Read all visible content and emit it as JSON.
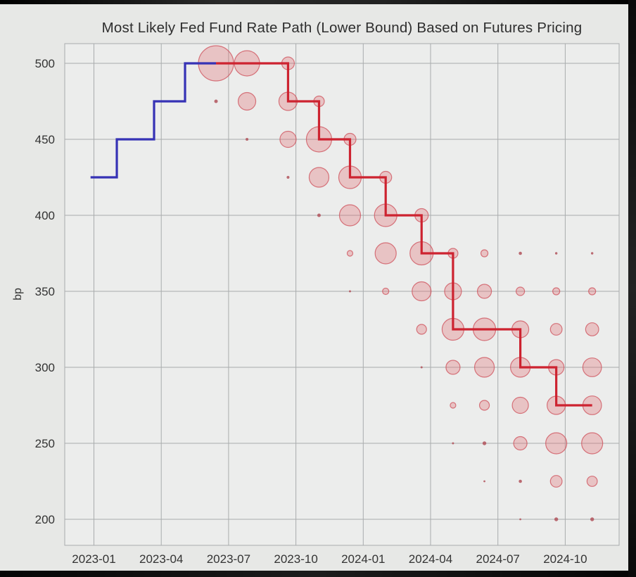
{
  "title": "Most Likely Fed Fund Rate Path (Lower Bound) Based on Futures Pricing",
  "chart_data": {
    "type": "scatter",
    "title": "Most Likely Fed Fund Rate Path (Lower Bound) Based on Futures Pricing",
    "xlabel": "",
    "ylabel": "bp",
    "x_tick_labels": [
      "2023-01",
      "2023-04",
      "2023-07",
      "2023-10",
      "2024-01",
      "2024-04",
      "2024-07",
      "2024-10"
    ],
    "x_tick_months": [
      0,
      3,
      6,
      9,
      12,
      15,
      18,
      21
    ],
    "y_ticks": [
      200,
      250,
      300,
      350,
      400,
      450,
      500
    ],
    "ylim": [
      183,
      513
    ],
    "xlim_months": [
      -1.3,
      23.4
    ],
    "grid": true,
    "legend": "none",
    "series": [
      {
        "name": "historical-rate-path",
        "type": "step-line",
        "color": "#3632b5",
        "points_t_bp": [
          [
            -0.15,
            425
          ],
          [
            1.02,
            450
          ],
          [
            2.68,
            475
          ],
          [
            4.06,
            500
          ]
        ],
        "end_t": 5.44
      },
      {
        "name": "futures-implied-most-likely-path",
        "type": "step-line",
        "color": "#cd2330",
        "points_t_bp": [
          [
            5.44,
            500
          ],
          [
            8.65,
            475
          ],
          [
            10.03,
            450
          ],
          [
            11.41,
            425
          ],
          [
            13.0,
            400
          ],
          [
            14.6,
            375
          ],
          [
            16.0,
            325
          ],
          [
            19.0,
            300
          ],
          [
            20.6,
            275
          ]
        ],
        "end_t": 22.2
      },
      {
        "name": "meeting-outcome-probabilities",
        "type": "bubble",
        "fill": "rgba(224,105,112,0.32)",
        "stroke": "rgba(206,77,88,0.75)",
        "dot_fill": "rgba(178,82,92,0.85)",
        "meetings": [
          {
            "date": "2023-06-14",
            "t": 5.44,
            "probs_bp_r": [
              [
                500,
                25
              ],
              [
                475,
                2.5
              ]
            ]
          },
          {
            "date": "2023-07-26",
            "t": 6.82,
            "probs_bp_r": [
              [
                500,
                18
              ],
              [
                475,
                12.5
              ],
              [
                450,
                2
              ]
            ]
          },
          {
            "date": "2023-09-20",
            "t": 8.65,
            "probs_bp_r": [
              [
                500,
                9
              ],
              [
                475,
                13
              ],
              [
                450,
                11.5
              ],
              [
                425,
                2
              ]
            ]
          },
          {
            "date": "2023-11-01",
            "t": 10.03,
            "probs_bp_r": [
              [
                475,
                7.5
              ],
              [
                450,
                18
              ],
              [
                425,
                14
              ],
              [
                400,
                2.5
              ]
            ]
          },
          {
            "date": "2023-12-13",
            "t": 11.41,
            "probs_bp_r": [
              [
                450,
                8.5
              ],
              [
                425,
                16
              ],
              [
                400,
                15
              ],
              [
                375,
                4
              ],
              [
                350,
                1.5
              ]
            ]
          },
          {
            "date": "2024-01-31",
            "t": 13.0,
            "probs_bp_r": [
              [
                425,
                8.5
              ],
              [
                400,
                16
              ],
              [
                375,
                15
              ],
              [
                350,
                4.5
              ]
            ]
          },
          {
            "date": "2024-03-20",
            "t": 14.6,
            "probs_bp_r": [
              [
                400,
                9.5
              ],
              [
                375,
                16.5
              ],
              [
                350,
                13.5
              ],
              [
                325,
                7
              ],
              [
                300,
                1.5
              ]
            ]
          },
          {
            "date": "2024-05-01",
            "t": 16.0,
            "probs_bp_r": [
              [
                375,
                7
              ],
              [
                350,
                12
              ],
              [
                325,
                15.5
              ],
              [
                300,
                10
              ],
              [
                275,
                4
              ],
              [
                250,
                1.5
              ]
            ]
          },
          {
            "date": "2024-06-12",
            "t": 17.4,
            "probs_bp_r": [
              [
                375,
                5
              ],
              [
                350,
                10
              ],
              [
                325,
                16
              ],
              [
                300,
                14
              ],
              [
                275,
                7
              ],
              [
                250,
                2.7
              ],
              [
                225,
                1.4
              ]
            ]
          },
          {
            "date": "2024-07-31",
            "t": 19.0,
            "probs_bp_r": [
              [
                375,
                2.3
              ],
              [
                350,
                6
              ],
              [
                325,
                12
              ],
              [
                300,
                14
              ],
              [
                275,
                11.5
              ],
              [
                250,
                9.5
              ],
              [
                225,
                2.3
              ],
              [
                200,
                1.4
              ]
            ]
          },
          {
            "date": "2024-09-18",
            "t": 20.6,
            "probs_bp_r": [
              [
                375,
                1.7
              ],
              [
                350,
                5
              ],
              [
                325,
                8.3
              ],
              [
                300,
                11
              ],
              [
                275,
                13
              ],
              [
                250,
                15
              ],
              [
                225,
                8.3
              ],
              [
                200,
                2.7
              ]
            ]
          },
          {
            "date": "2024-11-07",
            "t": 22.2,
            "probs_bp_r": [
              [
                375,
                1.7
              ],
              [
                350,
                5
              ],
              [
                325,
                9.3
              ],
              [
                300,
                13.3
              ],
              [
                275,
                13.3
              ],
              [
                250,
                15
              ],
              [
                225,
                7.3
              ],
              [
                200,
                2.7
              ]
            ]
          }
        ]
      }
    ],
    "colors": {
      "figure_bg": "#e7e8e6",
      "plot_bg": "#ecedec",
      "grid": "#a9acad",
      "tick_text": "#333333",
      "title_text": "#2e2e2e",
      "frame_bars": "#121212"
    }
  }
}
